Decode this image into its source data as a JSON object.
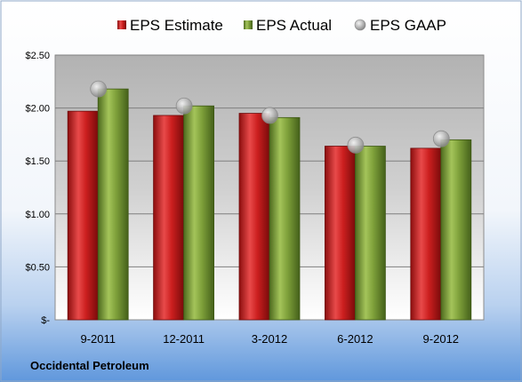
{
  "chart_data": {
    "type": "bar",
    "categories": [
      "9-2011",
      "12-2011",
      "3-2012",
      "6-2012",
      "9-2012"
    ],
    "series": [
      {
        "name": "EPS Estimate",
        "kind": "bar",
        "color": "#cc1f1f",
        "values": [
          1.97,
          1.93,
          1.95,
          1.64,
          1.62
        ]
      },
      {
        "name": "EPS Actual",
        "kind": "bar",
        "color": "#7ea03a",
        "values": [
          2.18,
          2.02,
          1.91,
          1.64,
          1.7
        ]
      },
      {
        "name": "EPS GAAP",
        "kind": "scatter",
        "color": "#a6a6a6",
        "values": [
          2.18,
          2.02,
          1.93,
          1.65,
          1.71
        ]
      }
    ],
    "y_ticks": [
      "$-",
      "$0.50",
      "$1.00",
      "$1.50",
      "$2.00",
      "$2.50"
    ],
    "ylim": [
      0,
      2.5
    ],
    "grid": true,
    "legend_position": "top"
  },
  "footer": {
    "company": "Occidental Petroleum"
  },
  "colors": {
    "background_top": "#ffffff",
    "background_bottom": "#5f97dc",
    "plot_top": "#b2b2b2",
    "plot_bottom": "#ffffff"
  }
}
